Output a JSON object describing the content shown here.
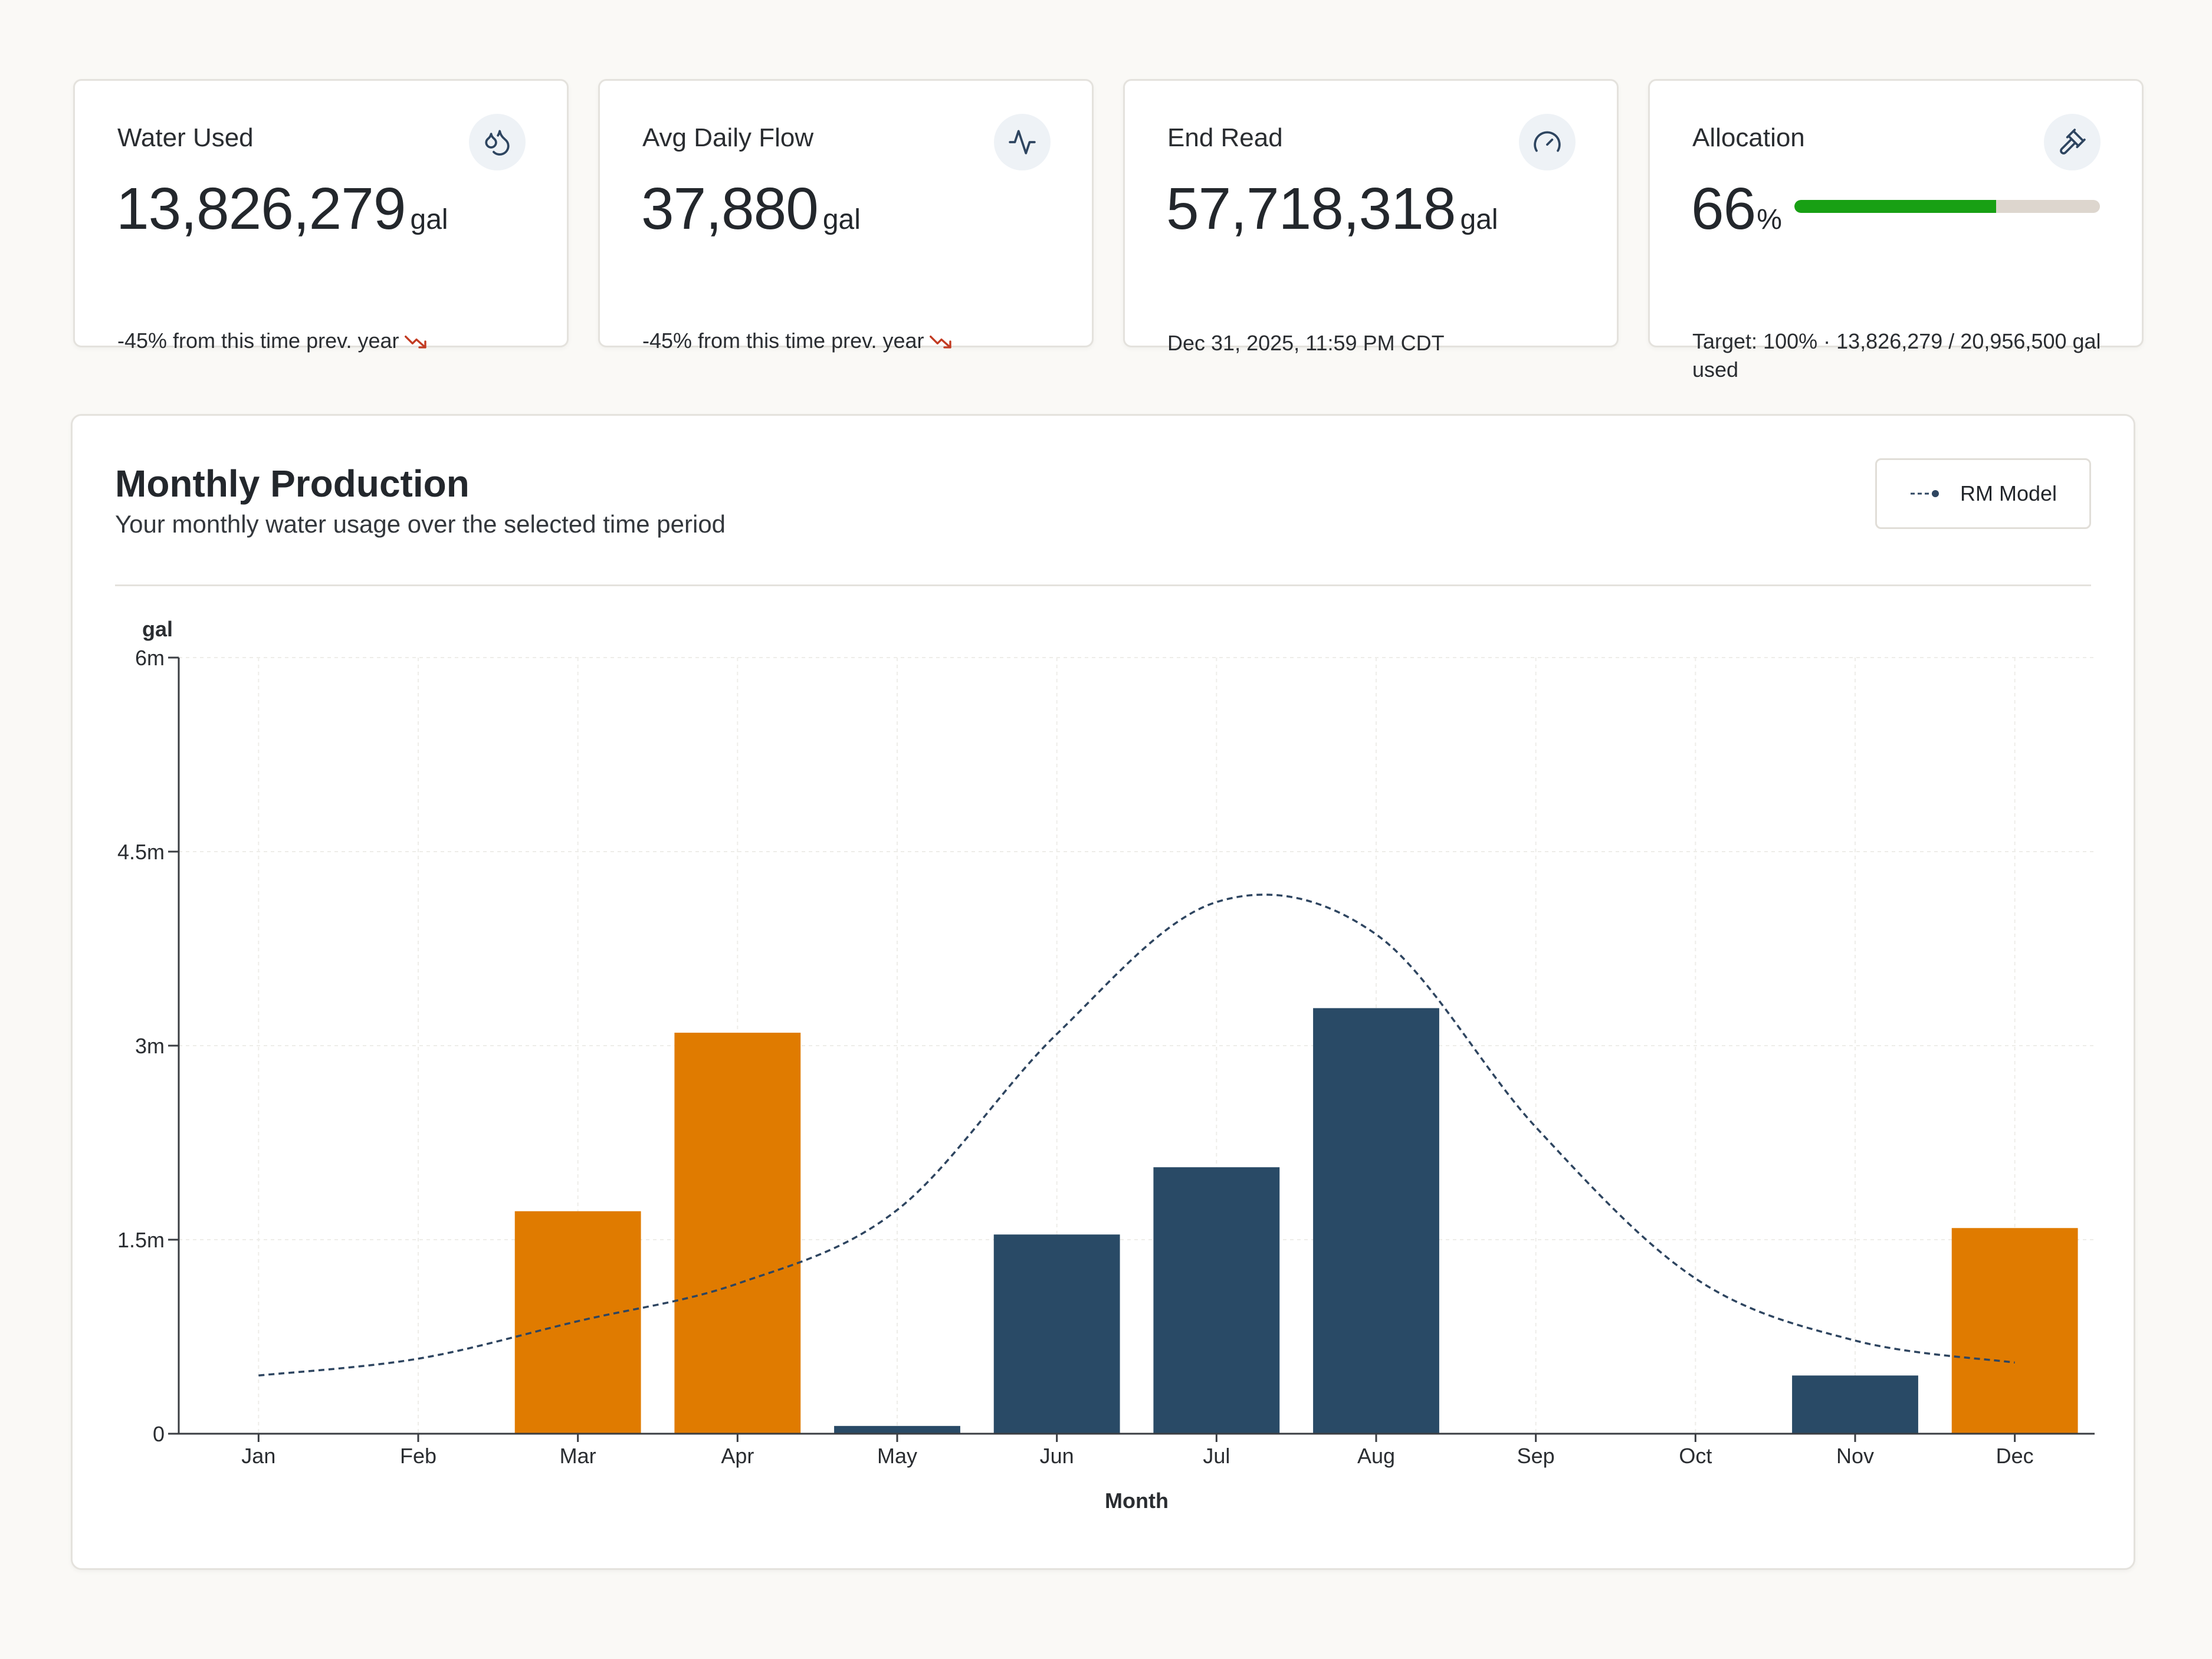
{
  "cards": [
    {
      "title": "Water Used",
      "icon": "water-drop-icon",
      "value": "13,826,279",
      "unit": "gal",
      "sub": "-45% from this time prev. year",
      "trend": "down"
    },
    {
      "title": "Avg Daily Flow",
      "icon": "activity-pulse-icon",
      "value": "37,880",
      "unit": "gal",
      "sub": "-45% from this time prev. year",
      "trend": "down"
    },
    {
      "title": "End Read",
      "icon": "gauge-icon",
      "value": "57,718,318",
      "unit": "gal",
      "sub": "Dec 31, 2025, 11:59 PM CDT"
    },
    {
      "title": "Allocation",
      "icon": "gavel-icon",
      "value": "66",
      "unit": "%",
      "progress_fraction": 0.66,
      "note": "Target: 100%  · 13,826,279 / 20,956,500 gal used"
    }
  ],
  "panel": {
    "title": "Monthly Production",
    "subtitle": "Your monthly water usage over the selected time period",
    "legend_button": "RM Model"
  },
  "colors": {
    "actual_bar": "#294a66",
    "forecast_bar": "#e07b00",
    "model_line": "#2e4560",
    "progress_fill": "#18a014",
    "trend_down": "#c23b22"
  },
  "chart_data": {
    "type": "bar",
    "ylabel": "gal",
    "xlabel": "Month",
    "ylim": [
      0,
      6000000
    ],
    "yticks": [
      0,
      1500000,
      3000000,
      4500000,
      6000000
    ],
    "ytick_labels": [
      "0",
      "1.5m",
      "3m",
      "4.5m",
      "6m"
    ],
    "grid": true,
    "categories": [
      "Jan",
      "Feb",
      "Mar",
      "Apr",
      "May",
      "Jun",
      "Jul",
      "Aug",
      "Sep",
      "Oct",
      "Nov",
      "Dec"
    ],
    "bars": [
      {
        "month": "Jan",
        "value": 0,
        "color": "#294a66"
      },
      {
        "month": "Feb",
        "value": 0,
        "color": "#294a66"
      },
      {
        "month": "Mar",
        "value": 1720000,
        "color": "#e07b00"
      },
      {
        "month": "Apr",
        "value": 3100000,
        "color": "#e07b00"
      },
      {
        "month": "May",
        "value": 60000,
        "color": "#294a66"
      },
      {
        "month": "Jun",
        "value": 1540000,
        "color": "#294a66"
      },
      {
        "month": "Jul",
        "value": 2060000,
        "color": "#294a66"
      },
      {
        "month": "Aug",
        "value": 3290000,
        "color": "#294a66"
      },
      {
        "month": "Sep",
        "value": 0,
        "color": "#294a66"
      },
      {
        "month": "Oct",
        "value": 0,
        "color": "#294a66"
      },
      {
        "month": "Nov",
        "value": 450000,
        "color": "#294a66"
      },
      {
        "month": "Dec",
        "value": 1590000,
        "color": "#e07b00"
      }
    ],
    "series": [
      {
        "name": "RM Model",
        "type": "line",
        "style": "dashed",
        "values": [
          450000,
          580000,
          870000,
          1160000,
          1730000,
          3090000,
          4110000,
          3860000,
          2370000,
          1200000,
          720000,
          550000
        ]
      }
    ]
  }
}
